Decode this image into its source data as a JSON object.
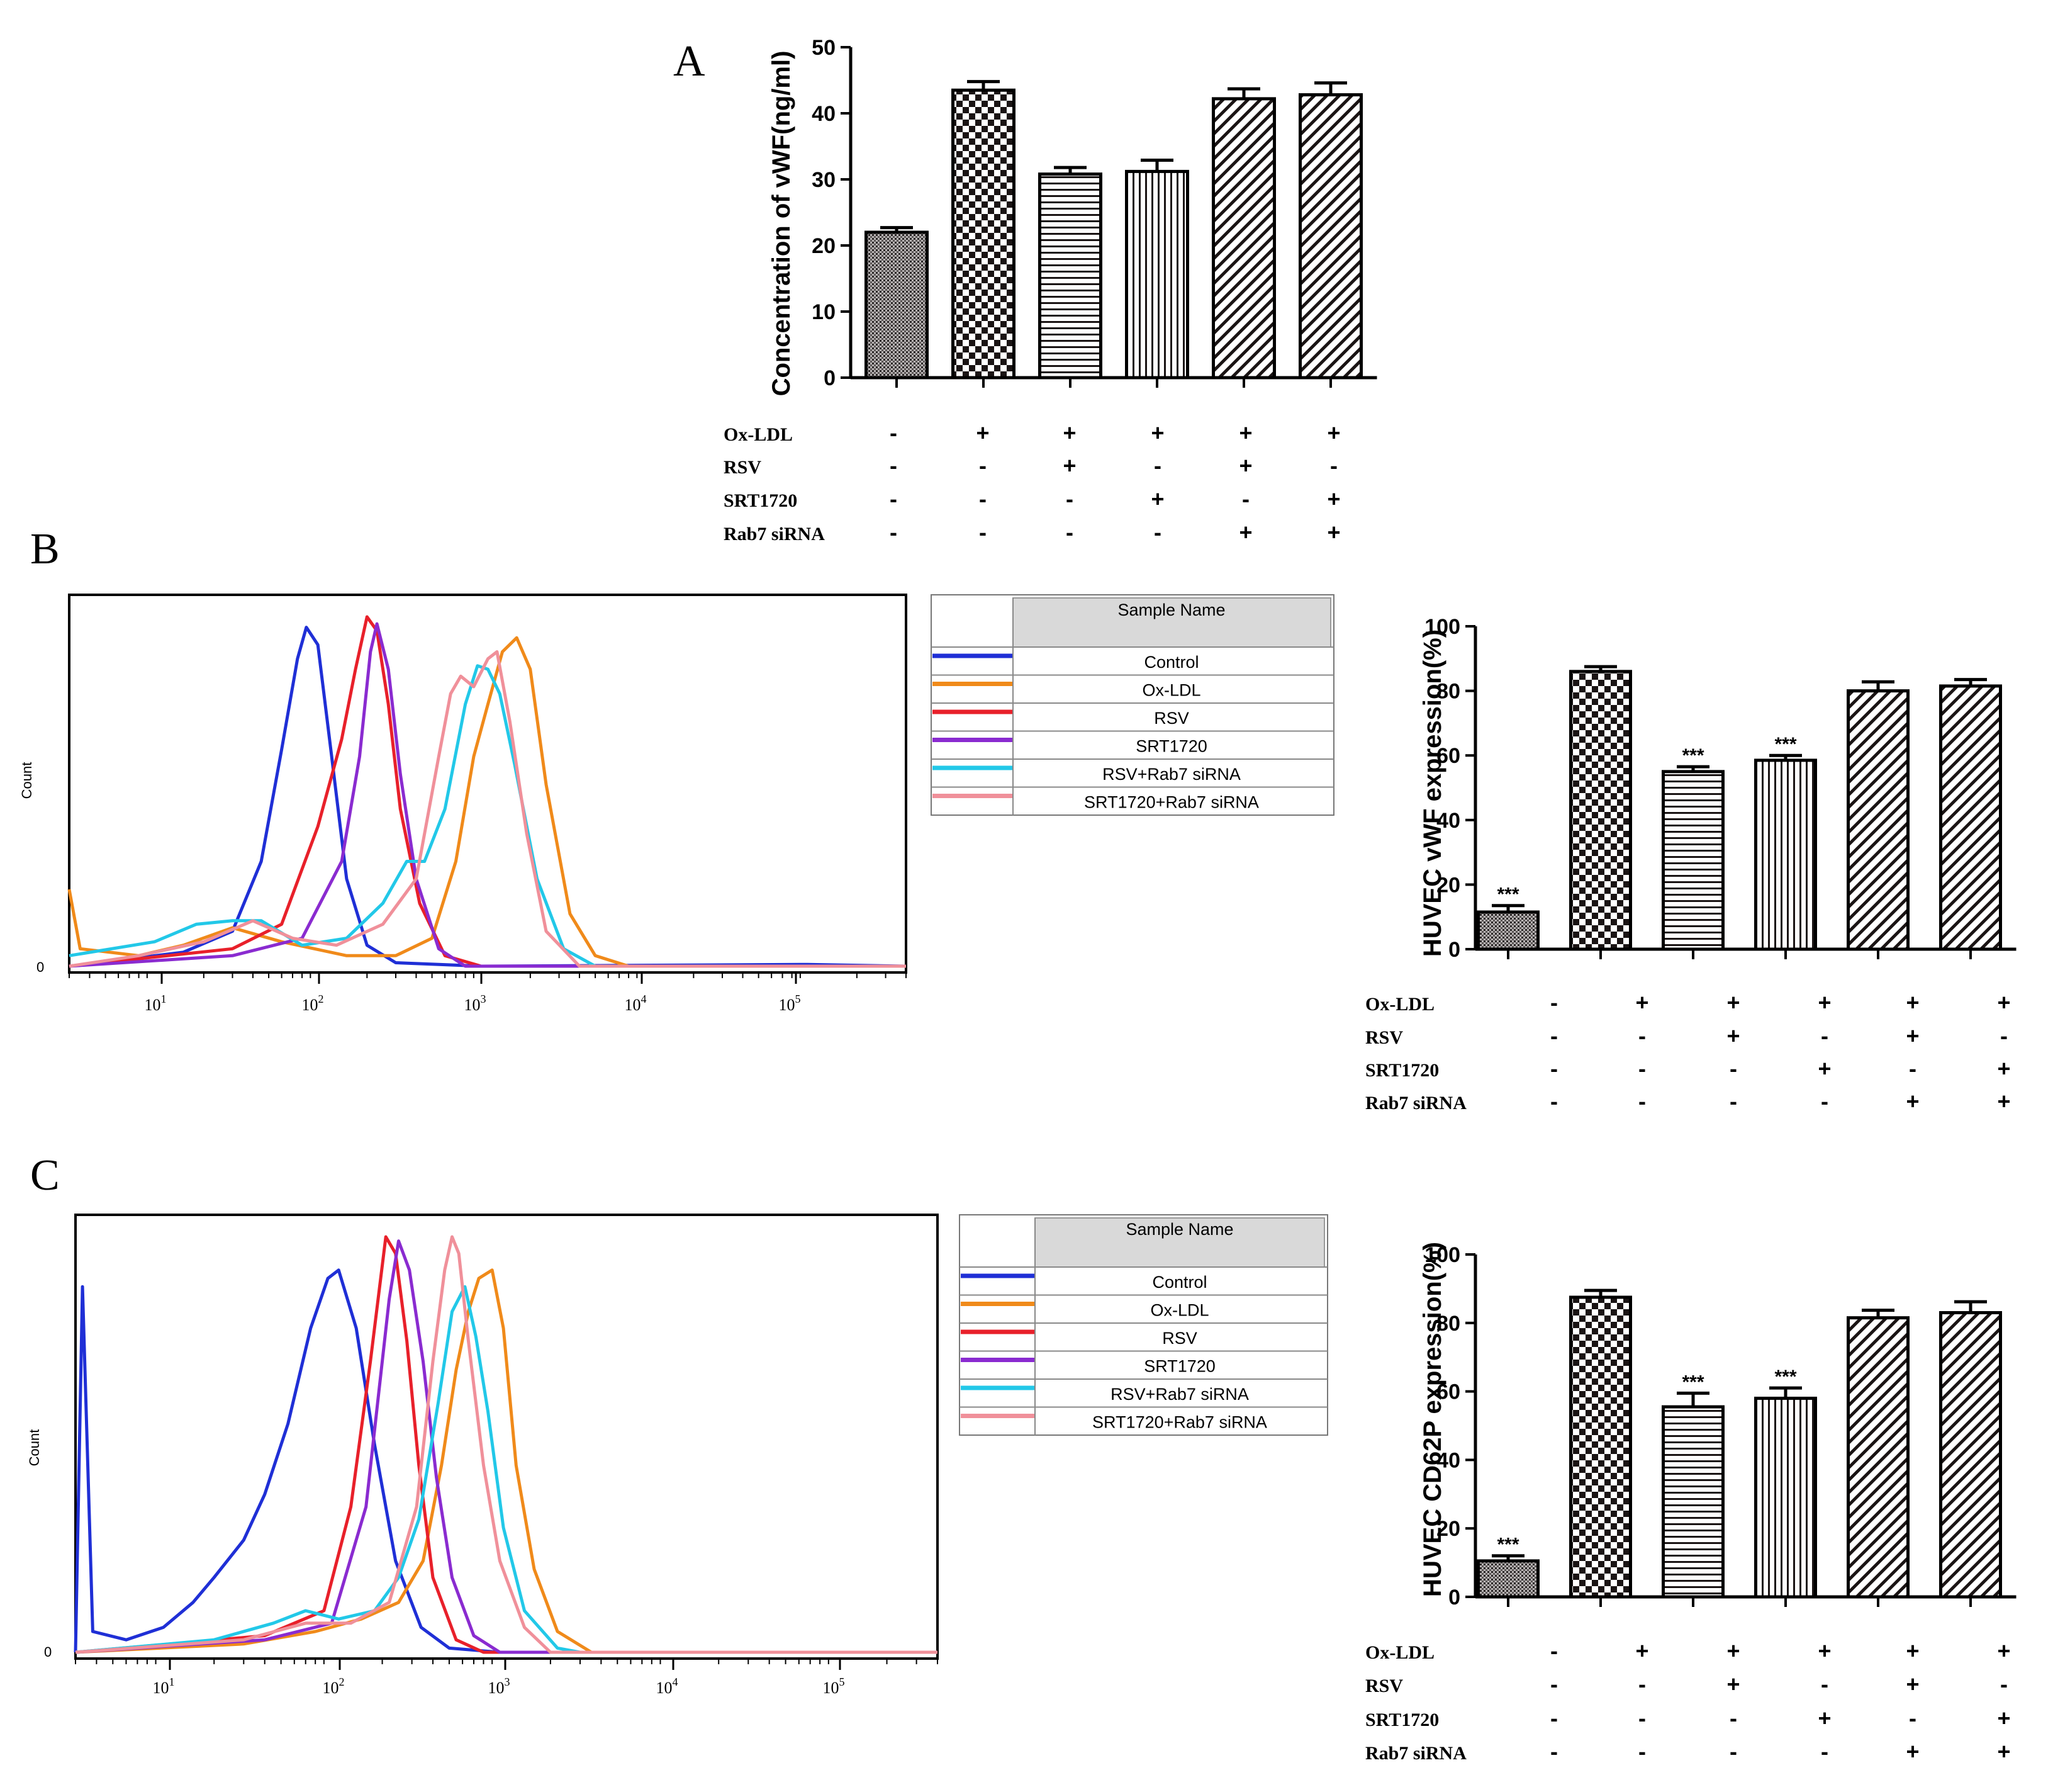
{
  "chart_data": [
    {
      "id": "A",
      "type": "bar",
      "panel_label": "A",
      "ylabel": "Concentration of vWF(ng/ml)",
      "ylim": [
        0,
        50
      ],
      "yticks": [
        "0",
        "10",
        "20",
        "30",
        "40",
        "50"
      ],
      "values": [
        22,
        43.5,
        30.8,
        31.2,
        42.2,
        42.8
      ],
      "errors": [
        0.7,
        1.3,
        1.0,
        1.7,
        1.5,
        1.8
      ],
      "patterns": [
        "dots",
        "checker",
        "hlines",
        "vlines",
        "diag",
        "diag"
      ],
      "stars": [
        "",
        "",
        "",
        "",
        "",
        ""
      ],
      "conditions": [
        {
          "label": "Ox-LDL",
          "signs": [
            "-",
            "+",
            "+",
            "+",
            "+",
            "+"
          ]
        },
        {
          "label": "RSV",
          "signs": [
            "-",
            "-",
            "+",
            "-",
            "+",
            "-"
          ]
        },
        {
          "label": "SRT1720",
          "signs": [
            "-",
            "-",
            "-",
            "+",
            "-",
            "+"
          ]
        },
        {
          "label": "Rab7 siRNA",
          "signs": [
            "-",
            "-",
            "-",
            "-",
            "+",
            "+"
          ]
        }
      ]
    },
    {
      "id": "B",
      "type": "bar",
      "panel_label": "B",
      "ylabel": "HUVEC vWF expression(%)",
      "ylim": [
        0,
        100
      ],
      "yticks": [
        "0",
        "20",
        "40",
        "60",
        "80",
        "100"
      ],
      "values": [
        11.5,
        86,
        55,
        58.5,
        80,
        81.5
      ],
      "errors": [
        2,
        1.5,
        1.5,
        1.5,
        2.8,
        2
      ],
      "patterns": [
        "dots",
        "checker",
        "hlines",
        "vlines",
        "diag",
        "diag"
      ],
      "stars": [
        "***",
        "",
        "***",
        "***",
        "",
        ""
      ],
      "conditions": [
        {
          "label": "Ox-LDL",
          "signs": [
            "-",
            "+",
            "+",
            "+",
            "+",
            "+"
          ]
        },
        {
          "label": "RSV",
          "signs": [
            "-",
            "-",
            "+",
            "-",
            "+",
            "-"
          ]
        },
        {
          "label": "SRT1720",
          "signs": [
            "-",
            "-",
            "-",
            "+",
            "-",
            "+"
          ]
        },
        {
          "label": "Rab7 siRNA",
          "signs": [
            "-",
            "-",
            "-",
            "-",
            "+",
            "+"
          ]
        }
      ]
    },
    {
      "id": "C",
      "type": "bar",
      "panel_label": "C",
      "ylabel": "HUVEC CD62P expression(%)",
      "ylim": [
        0,
        100
      ],
      "yticks": [
        "0",
        "20",
        "40",
        "60",
        "80",
        "100"
      ],
      "values": [
        10.5,
        87.5,
        55.5,
        58,
        81.5,
        83
      ],
      "errors": [
        1.5,
        2,
        4,
        3,
        2.2,
        3.2
      ],
      "patterns": [
        "dots",
        "checker",
        "hlines",
        "vlines",
        "diag",
        "diag"
      ],
      "stars": [
        "***",
        "",
        "***",
        "***",
        "",
        ""
      ],
      "conditions": [
        {
          "label": "Ox-LDL",
          "signs": [
            "-",
            "+",
            "+",
            "+",
            "+",
            "+"
          ]
        },
        {
          "label": "RSV",
          "signs": [
            "-",
            "-",
            "+",
            "-",
            "+",
            "-"
          ]
        },
        {
          "label": "SRT1720",
          "signs": [
            "-",
            "-",
            "-",
            "+",
            "-",
            "+"
          ]
        },
        {
          "label": "Rab7 siRNA",
          "signs": [
            "-",
            "-",
            "-",
            "-",
            "+",
            "+"
          ]
        }
      ]
    },
    {
      "id": "histB",
      "type": "line",
      "ylabel": "Count",
      "yticks": [
        "0"
      ],
      "xscale": "log",
      "xlim": [
        3,
        400000
      ],
      "xticks": [
        {
          "base": "10",
          "exp": "1"
        },
        {
          "base": "10",
          "exp": "2"
        },
        {
          "base": "10",
          "exp": "3"
        },
        {
          "base": "10",
          "exp": "4"
        },
        {
          "base": "10",
          "exp": "5"
        }
      ],
      "legend_header": "Sample Name",
      "series": [
        {
          "name": "Control",
          "color": "#1f2fd6",
          "points": [
            [
              3,
              0
            ],
            [
              15,
              4
            ],
            [
              30,
              10
            ],
            [
              45,
              30
            ],
            [
              60,
              62
            ],
            [
              75,
              88
            ],
            [
              85,
              97
            ],
            [
              100,
              92
            ],
            [
              120,
              62
            ],
            [
              150,
              25
            ],
            [
              200,
              6
            ],
            [
              300,
              1
            ],
            [
              1000,
              0
            ],
            [
              100000,
              0.5
            ],
            [
              400000,
              0
            ]
          ]
        },
        {
          "name": "Ox-LDL",
          "color": "#f08a1a",
          "points": [
            [
              3,
              22
            ],
            [
              3.5,
              5
            ],
            [
              8,
              3
            ],
            [
              15,
              6
            ],
            [
              30,
              11
            ],
            [
              60,
              7
            ],
            [
              150,
              3
            ],
            [
              300,
              3
            ],
            [
              500,
              8
            ],
            [
              700,
              30
            ],
            [
              900,
              60
            ],
            [
              1100,
              75
            ],
            [
              1350,
              90
            ],
            [
              1650,
              94
            ],
            [
              2000,
              85
            ],
            [
              2500,
              52
            ],
            [
              3500,
              15
            ],
            [
              5000,
              3
            ],
            [
              8000,
              0
            ],
            [
              400000,
              0
            ]
          ]
        },
        {
          "name": "RSV",
          "color": "#e8202a",
          "points": [
            [
              3,
              0
            ],
            [
              30,
              5
            ],
            [
              60,
              12
            ],
            [
              100,
              40
            ],
            [
              140,
              65
            ],
            [
              170,
              85
            ],
            [
              200,
              100
            ],
            [
              230,
              96
            ],
            [
              270,
              75
            ],
            [
              320,
              45
            ],
            [
              420,
              18
            ],
            [
              600,
              3
            ],
            [
              1000,
              0
            ],
            [
              400000,
              0
            ]
          ]
        },
        {
          "name": "SRT1720",
          "color": "#8a2bd0",
          "points": [
            [
              3,
              0
            ],
            [
              30,
              3
            ],
            [
              80,
              8
            ],
            [
              140,
              30
            ],
            [
              180,
              60
            ],
            [
              210,
              90
            ],
            [
              230,
              98
            ],
            [
              270,
              85
            ],
            [
              320,
              55
            ],
            [
              400,
              25
            ],
            [
              550,
              5
            ],
            [
              800,
              0
            ],
            [
              400000,
              0
            ]
          ]
        },
        {
          "name": "RSV+Rab7 siRNA",
          "color": "#22c8e8",
          "points": [
            [
              3,
              3
            ],
            [
              10,
              7
            ],
            [
              18,
              12
            ],
            [
              30,
              13
            ],
            [
              45,
              13
            ],
            [
              80,
              6
            ],
            [
              150,
              8
            ],
            [
              250,
              18
            ],
            [
              350,
              30
            ],
            [
              450,
              30
            ],
            [
              600,
              45
            ],
            [
              800,
              75
            ],
            [
              950,
              86
            ],
            [
              1100,
              85
            ],
            [
              1300,
              78
            ],
            [
              1600,
              58
            ],
            [
              2200,
              25
            ],
            [
              3200,
              5
            ],
            [
              5000,
              0
            ],
            [
              400000,
              0
            ]
          ]
        },
        {
          "name": "SRT1720+Rab7 siRNA",
          "color": "#f0909a",
          "points": [
            [
              3,
              0
            ],
            [
              8,
              3
            ],
            [
              20,
              7
            ],
            [
              40,
              13
            ],
            [
              70,
              8
            ],
            [
              130,
              6
            ],
            [
              250,
              12
            ],
            [
              400,
              25
            ],
            [
              550,
              60
            ],
            [
              650,
              78
            ],
            [
              750,
              83
            ],
            [
              900,
              80
            ],
            [
              1100,
              88
            ],
            [
              1250,
              90
            ],
            [
              1500,
              70
            ],
            [
              1900,
              38
            ],
            [
              2500,
              10
            ],
            [
              4000,
              0
            ],
            [
              400000,
              0
            ]
          ]
        }
      ]
    },
    {
      "id": "histC",
      "type": "line",
      "ylabel": "Count",
      "yticks": [
        "0"
      ],
      "xscale": "log",
      "xlim": [
        3,
        400000
      ],
      "xticks": [
        {
          "base": "10",
          "exp": "1"
        },
        {
          "base": "10",
          "exp": "2"
        },
        {
          "base": "10",
          "exp": "3"
        },
        {
          "base": "10",
          "exp": "4"
        },
        {
          "base": "10",
          "exp": "5"
        }
      ],
      "legend_header": "Sample Name",
      "series": [
        {
          "name": "Control",
          "color": "#1f2fd6",
          "points": [
            [
              3,
              0
            ],
            [
              3.3,
              88
            ],
            [
              3.8,
              5
            ],
            [
              6,
              3
            ],
            [
              10,
              6
            ],
            [
              15,
              12
            ],
            [
              20,
              18
            ],
            [
              30,
              27
            ],
            [
              40,
              38
            ],
            [
              55,
              55
            ],
            [
              75,
              78
            ],
            [
              95,
              90
            ],
            [
              110,
              92
            ],
            [
              140,
              78
            ],
            [
              180,
              50
            ],
            [
              240,
              22
            ],
            [
              340,
              6
            ],
            [
              500,
              1
            ],
            [
              1000,
              0
            ],
            [
              400000,
              0
            ]
          ]
        },
        {
          "name": "Ox-LDL",
          "color": "#f08a1a",
          "points": [
            [
              3,
              0
            ],
            [
              30,
              2
            ],
            [
              80,
              5
            ],
            [
              150,
              8
            ],
            [
              250,
              12
            ],
            [
              350,
              22
            ],
            [
              450,
              45
            ],
            [
              550,
              68
            ],
            [
              650,
              82
            ],
            [
              750,
              90
            ],
            [
              900,
              92
            ],
            [
              1050,
              78
            ],
            [
              1250,
              45
            ],
            [
              1600,
              20
            ],
            [
              2200,
              5
            ],
            [
              3500,
              0
            ],
            [
              400000,
              0
            ]
          ]
        },
        {
          "name": "RSV",
          "color": "#e8202a",
          "points": [
            [
              3,
              0
            ],
            [
              40,
              4
            ],
            [
              90,
              10
            ],
            [
              130,
              35
            ],
            [
              170,
              70
            ],
            [
              210,
              100
            ],
            [
              240,
              96
            ],
            [
              280,
              75
            ],
            [
              330,
              45
            ],
            [
              400,
              18
            ],
            [
              550,
              3
            ],
            [
              800,
              0
            ],
            [
              400000,
              0
            ]
          ]
        },
        {
          "name": "SRT1720",
          "color": "#8a2bd0",
          "points": [
            [
              3,
              0
            ],
            [
              40,
              3
            ],
            [
              100,
              7
            ],
            [
              160,
              35
            ],
            [
              220,
              85
            ],
            [
              250,
              99
            ],
            [
              290,
              92
            ],
            [
              350,
              70
            ],
            [
              420,
              42
            ],
            [
              520,
              18
            ],
            [
              700,
              4
            ],
            [
              1000,
              0
            ],
            [
              400000,
              0
            ]
          ]
        },
        {
          "name": "RSV+Rab7 siRNA",
          "color": "#22c8e8",
          "points": [
            [
              3,
              0
            ],
            [
              20,
              3
            ],
            [
              45,
              7
            ],
            [
              70,
              10
            ],
            [
              110,
              8
            ],
            [
              180,
              10
            ],
            [
              250,
              18
            ],
            [
              330,
              32
            ],
            [
              430,
              60
            ],
            [
              520,
              82
            ],
            [
              620,
              88
            ],
            [
              720,
              76
            ],
            [
              850,
              58
            ],
            [
              1050,
              30
            ],
            [
              1400,
              10
            ],
            [
              2200,
              1
            ],
            [
              3000,
              0
            ],
            [
              400000,
              0
            ]
          ]
        },
        {
          "name": "SRT1720+Rab7 siRNA",
          "color": "#f0909a",
          "points": [
            [
              3,
              0
            ],
            [
              30,
              3
            ],
            [
              70,
              7
            ],
            [
              130,
              7
            ],
            [
              220,
              12
            ],
            [
              320,
              35
            ],
            [
              400,
              70
            ],
            [
              470,
              92
            ],
            [
              520,
              100
            ],
            [
              570,
              96
            ],
            [
              650,
              75
            ],
            [
              800,
              45
            ],
            [
              1000,
              22
            ],
            [
              1400,
              6
            ],
            [
              2000,
              0
            ],
            [
              400000,
              0
            ]
          ]
        }
      ]
    }
  ]
}
